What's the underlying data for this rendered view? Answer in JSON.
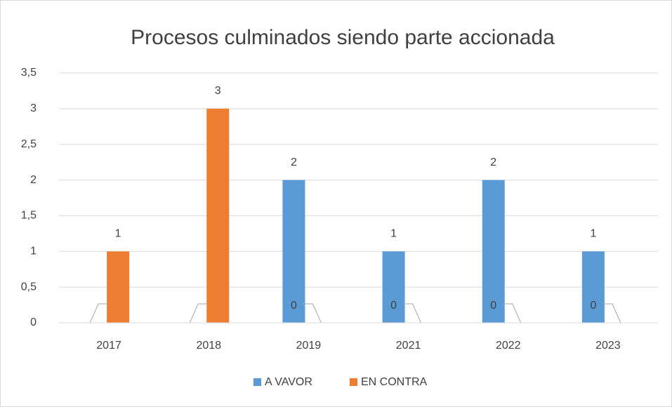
{
  "chart_data": {
    "type": "bar",
    "title": "Procesos culminados siendo parte accionada",
    "categories": [
      "2017",
      "2018",
      "2019",
      "2021",
      "2022",
      "2023"
    ],
    "series": [
      {
        "name": "A VAVOR",
        "color": "#5b9bd5",
        "values": [
          0,
          0,
          2,
          1,
          2,
          1
        ]
      },
      {
        "name": "EN CONTRA",
        "color": "#ed7d31",
        "values": [
          1,
          3,
          0,
          0,
          0,
          0
        ]
      }
    ],
    "ylim": [
      0,
      3.5
    ],
    "yticks": [
      0,
      {
        "value": 0.5,
        "label": "0,5"
      },
      1,
      {
        "value": 1.5,
        "label": "1,5"
      },
      2,
      {
        "value": 2.5,
        "label": "2,5"
      },
      3,
      {
        "value": 3.5,
        "label": "3,5"
      }
    ],
    "grid": true,
    "legend": "bottom"
  }
}
